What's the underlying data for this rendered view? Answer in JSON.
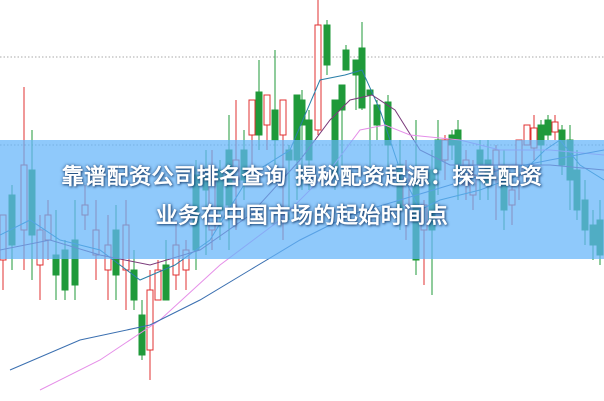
{
  "title": {
    "line1": "靠谱配资公司排名查询 揭秘配资起源：探寻配资",
    "line2": "业务在中国市场的起始时间点"
  },
  "colors": {
    "up": "#e03030",
    "down": "#1f9a3a",
    "ma_short": "#2a7fa8",
    "ma_mid": "#7a3a7a",
    "ma_long": "#e58ee8",
    "ma_trend": "#3a6fb0",
    "banner": "#64b4fa",
    "grid": "#aaaaaa"
  }
}
